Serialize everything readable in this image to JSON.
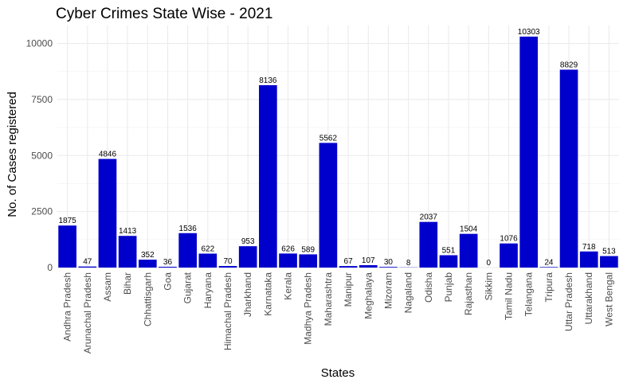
{
  "chart_data": {
    "type": "bar",
    "title": "Cyber Crimes State Wise - 2021",
    "xlabel": "States",
    "ylabel": "No. of Cases registered",
    "ylim": [
      0,
      10800
    ],
    "yticks": [
      0,
      2500,
      5000,
      7500,
      10000
    ],
    "bar_color": "#0000CD",
    "grid": true,
    "legend": "none",
    "categories": [
      "Andhra Pradesh",
      "Arunachal Pradesh",
      "Assam",
      "Bihar",
      "Chhattisgarh",
      "Goa",
      "Gujarat",
      "Haryana",
      "Himachal Pradesh",
      "Jharkhand",
      "Karnataka",
      "Kerala",
      "Madhya Pradesh",
      "Maharashtra",
      "Manipur",
      "Meghalaya",
      "Mizoram",
      "Nagaland",
      "Odisha",
      "Punjab",
      "Rajasthan",
      "Sikkim",
      "Tamil Nadu",
      "Telangana",
      "Tripura",
      "Uttar Pradesh",
      "Uttarakhand",
      "West Bengal"
    ],
    "values": [
      1875,
      47,
      4846,
      1413,
      352,
      36,
      1536,
      622,
      70,
      953,
      8136,
      626,
      589,
      5562,
      67,
      107,
      30,
      8,
      2037,
      551,
      1504,
      0,
      1076,
      10303,
      24,
      8829,
      718,
      513
    ]
  }
}
